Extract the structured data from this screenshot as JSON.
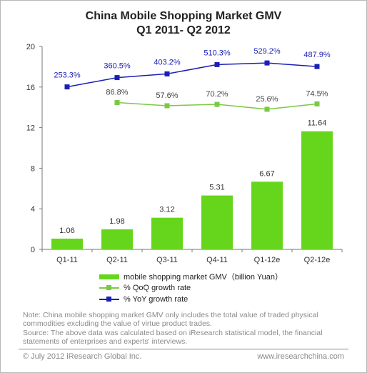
{
  "chart_data": {
    "type": "bar",
    "title": "China Mobile  Shopping Market GMV",
    "subtitle": "Q1 2011- Q2 2012",
    "categories": [
      "Q1-11",
      "Q2-11",
      "Q3-11",
      "Q4-11",
      "Q1-12e",
      "Q2-12e"
    ],
    "ylim": [
      0,
      20
    ],
    "yticks": [
      0,
      4,
      8,
      12,
      16,
      20
    ],
    "series": [
      {
        "name": "mobile shopping market  GMV（billion Yuan）",
        "type": "bar",
        "values": [
          1.06,
          1.98,
          3.12,
          5.31,
          6.67,
          11.64
        ],
        "labels": [
          "1.06",
          "1.98",
          "3.12",
          "5.31",
          "6.67",
          "11.64"
        ],
        "color": "#66d61c"
      },
      {
        "name": "% QoQ growth rate",
        "type": "line",
        "values": [
          null,
          86.8,
          57.6,
          70.2,
          25.6,
          74.5
        ],
        "labels": [
          "",
          "86.8%",
          "57.6%",
          "70.2%",
          "25.6%",
          "74.5%"
        ],
        "color": "#7ac943"
      },
      {
        "name": "% YoY growth rate",
        "type": "line",
        "values": [
          253.3,
          360.5,
          403.2,
          510.3,
          529.2,
          487.9
        ],
        "labels": [
          "253.3%",
          "360.5%",
          "403.2%",
          "510.3%",
          "529.2%",
          "487.9%"
        ],
        "color": "#1c1fb5"
      }
    ],
    "legend_placement": "bottom",
    "grid": false
  },
  "note": "Note: China mobile shopping market GMV only includes the total value of traded physical commodities  excluding the value of virtue product trades.",
  "source": "Source: The above data was calculated based on iResearch statistical model, the financial statements of enterprises and experts' interviews.",
  "footer": {
    "copyright": "© July 2012 iResearch Global Inc.",
    "website": "www.iresearchchina.com"
  }
}
